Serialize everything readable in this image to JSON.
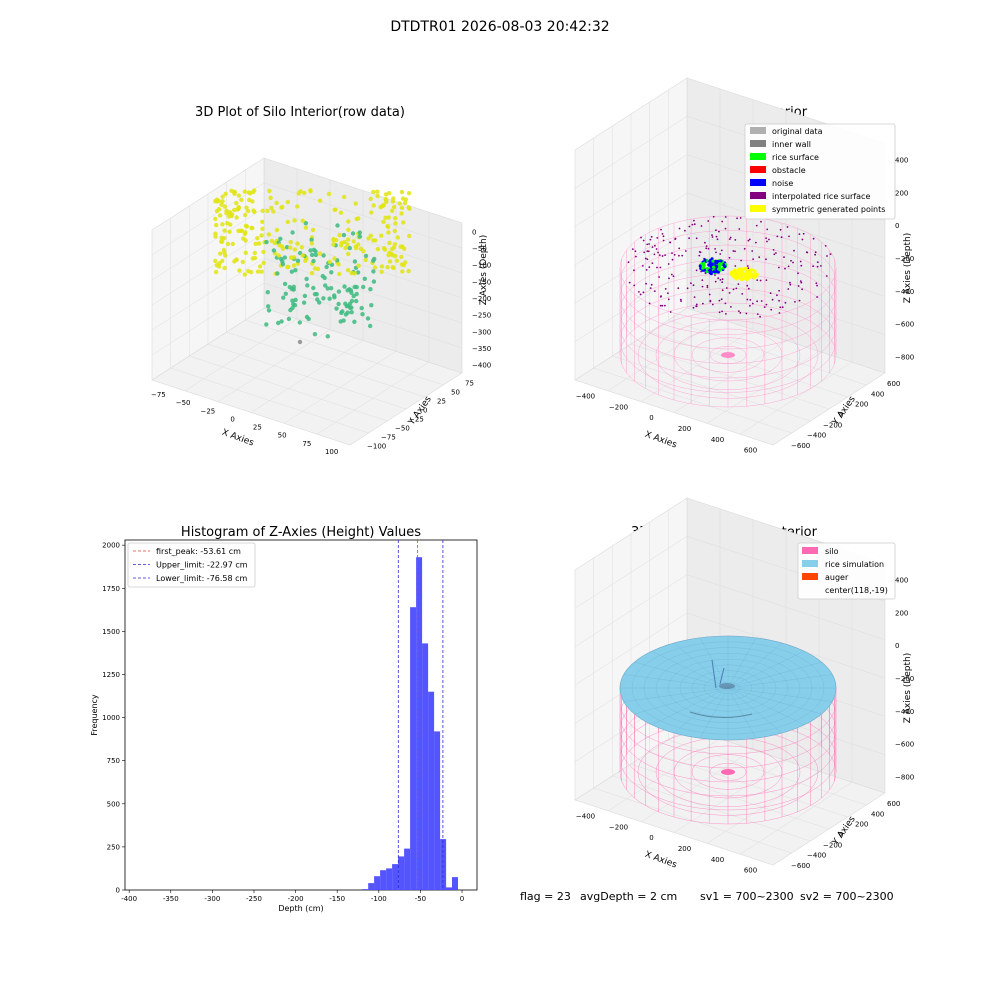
{
  "suptitle": "DTDTR01 2026-08-03 20:42:32",
  "status": {
    "flag": "flag = 23",
    "avg_depth": "avgDepth = 2 cm",
    "sv1": "sv1 = 700~2300",
    "sv2": "sv2 = 700~2300"
  },
  "chart_data": [
    {
      "type": "scatter",
      "title": "3D Plot of Silo Interior(row data)",
      "xlabel": "X Axies",
      "ylabel": "Y Axies",
      "zlabel": "Z Axies (Depth)",
      "x_ticks": [
        "−75",
        "−50",
        "−25",
        "0",
        "25",
        "50",
        "75",
        "100"
      ],
      "y_ticks": [
        "−100",
        "−75",
        "−50",
        "−25",
        "0",
        "25",
        "50",
        "75"
      ],
      "z_ticks": [
        "0",
        "−50",
        "−100",
        "−150",
        "−200",
        "−250",
        "−300",
        "−350",
        "−400"
      ],
      "xlim": [
        -90,
        110
      ],
      "ylim": [
        -110,
        90
      ],
      "zlim": [
        -420,
        20
      ],
      "colors": {
        "high": "#e0e510",
        "low": "#3dbb80",
        "outlier": "#9a9a9a"
      }
    },
    {
      "type": "scatter",
      "title": "3D classify of Silo Interior",
      "xlabel": "X Axies",
      "ylabel": "Y Axies",
      "zlabel": "Z Axies (Depth)",
      "x_ticks": [
        "−400",
        "−200",
        "0",
        "200",
        "400",
        "600"
      ],
      "y_ticks": [
        "−600",
        "−400",
        "−200",
        "0",
        "200",
        "400",
        "600"
      ],
      "z_ticks": [
        "400",
        "200",
        "0",
        "−200",
        "−400",
        "−600",
        "−800"
      ],
      "legend": [
        {
          "label": "original data",
          "color": "#b0b0b0"
        },
        {
          "label": "inner wall",
          "color": "#808080"
        },
        {
          "label": "rice surface",
          "color": "#00ff00"
        },
        {
          "label": "obstacle",
          "color": "#ff0000"
        },
        {
          "label": "noise",
          "color": "#0000ff"
        },
        {
          "label": "interpolated rice surface",
          "color": "#800080"
        },
        {
          "label": "symmetric generated points",
          "color": "#ffff00"
        }
      ],
      "legend_position": "top-right"
    },
    {
      "type": "bar",
      "title": "Histogram of Z-Axies (Height) Values",
      "xlabel": "Depth (cm)",
      "ylabel": "Frequency",
      "xlim": [
        -405,
        18
      ],
      "ylim": [
        0,
        2030
      ],
      "x_ticks": [
        -400,
        -350,
        -300,
        -250,
        -200,
        -150,
        -100,
        -50,
        0
      ],
      "y_ticks": [
        0,
        250,
        500,
        750,
        1000,
        1250,
        1500,
        1750,
        2000
      ],
      "bin_width": 7.2,
      "bin_edges_start": -120,
      "values": [
        5,
        40,
        80,
        115,
        125,
        150,
        195,
        240,
        1640,
        1930,
        1430,
        1150,
        920,
        295,
        15,
        75
      ],
      "bar_color": "#4c4cff",
      "lines": [
        {
          "label": "first_peak: -53.61 cm",
          "value": -53.61,
          "color": "#e0403a"
        },
        {
          "label": "Upper_limit: -22.97 cm",
          "value": -22.97,
          "color": "#2a2ad8"
        },
        {
          "label": "Lower_limit: -76.58 cm",
          "value": -76.58,
          "color": "#2a2ad8"
        }
      ],
      "legend_position": "top-left"
    },
    {
      "type": "scatter",
      "title": "3D simulation of Silo Interior",
      "xlabel": "X Axies",
      "ylabel": "Y Axies",
      "zlabel": "Z Axies (Depth)",
      "x_ticks": [
        "−400",
        "−200",
        "0",
        "200",
        "400",
        "600"
      ],
      "y_ticks": [
        "−600",
        "−400",
        "−200",
        "0",
        "200",
        "400",
        "600"
      ],
      "z_ticks": [
        "400",
        "200",
        "0",
        "−200",
        "−400",
        "−600",
        "−800"
      ],
      "legend": [
        {
          "label": "silo",
          "color": "#ff69b4"
        },
        {
          "label": "rice simulation",
          "color": "#87ceeb"
        },
        {
          "label": "auger",
          "color": "#ff4500"
        },
        {
          "label": "center(118,-19)",
          "color": ""
        }
      ],
      "legend_position": "top-right"
    }
  ]
}
